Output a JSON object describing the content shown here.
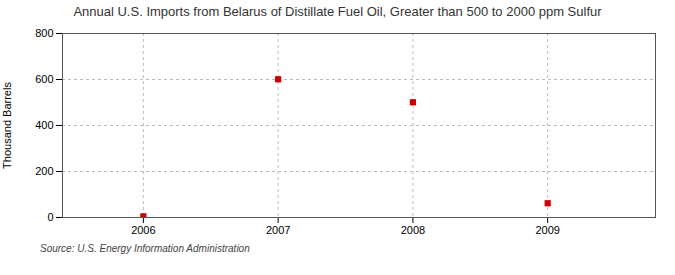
{
  "chart_data": {
    "type": "scatter",
    "title": "Annual U.S. Imports from Belarus of Distillate Fuel Oil, Greater than 500 to 2000 ppm Sulfur",
    "ylabel": "Thousand Barrels",
    "source": "Source: U.S. Energy Information Administration",
    "x": [
      2006,
      2007,
      2008,
      2009
    ],
    "values": [
      5,
      601,
      501,
      62
    ],
    "color": "#cc0000",
    "marker": "square",
    "xlim": [
      2005.4,
      2009.8
    ],
    "xticks": [
      2006,
      2007,
      2008,
      2009
    ],
    "ylim": [
      0,
      800
    ],
    "yticks": [
      0,
      200,
      400,
      600,
      800
    ],
    "grid": true
  }
}
